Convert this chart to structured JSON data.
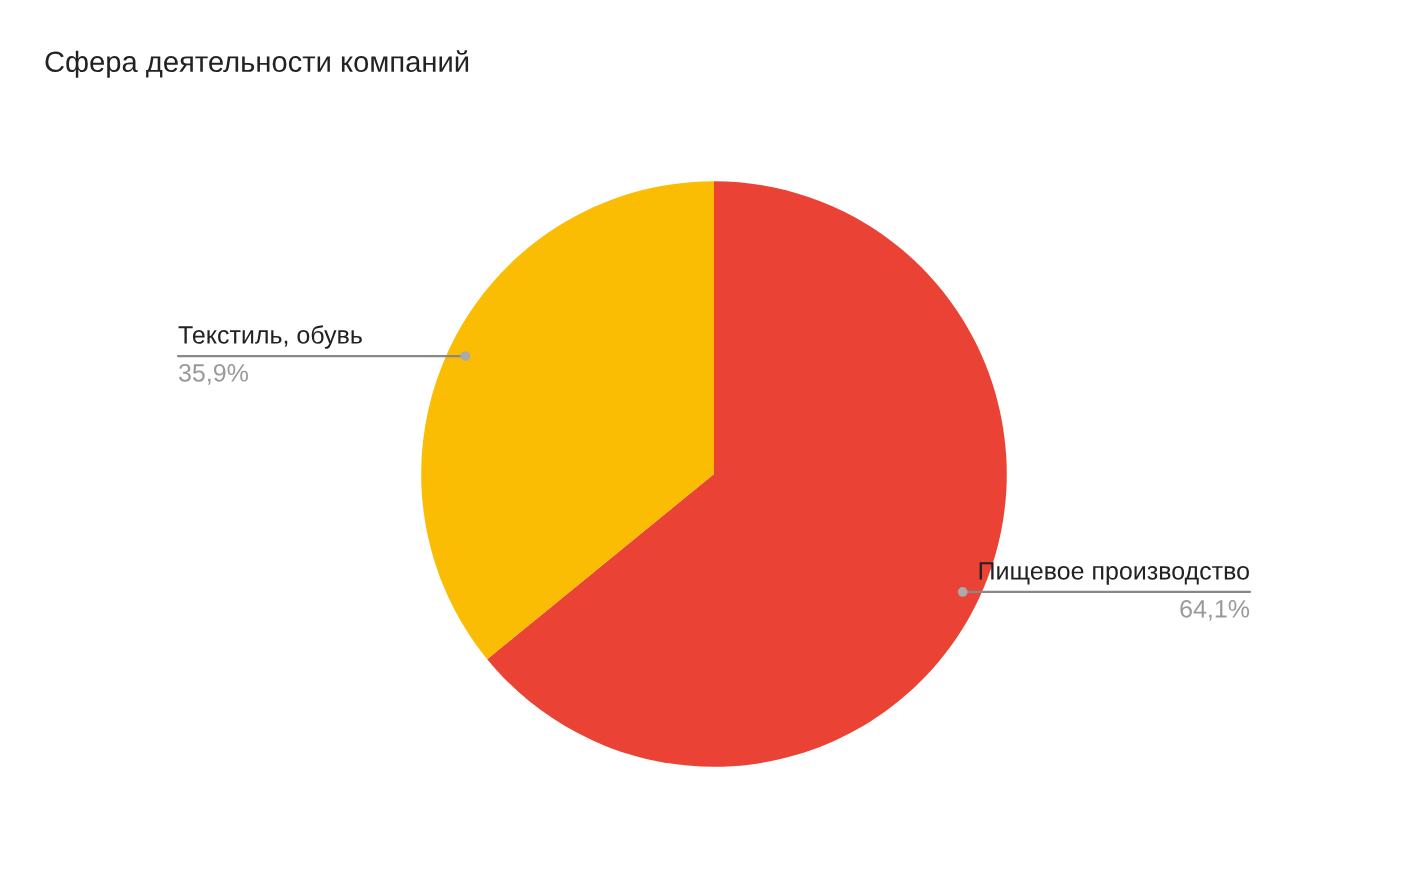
{
  "chart_data": {
    "type": "pie",
    "title": "Сфера деятельности компаний",
    "categories": [
      "Пищевое производство",
      "Текстиль, обувь"
    ],
    "values": [
      64.1,
      35.9
    ],
    "value_labels": [
      "64,1%",
      "35,9%"
    ],
    "colors": [
      "#ea4335",
      "#fbbc04"
    ],
    "legend": false
  }
}
